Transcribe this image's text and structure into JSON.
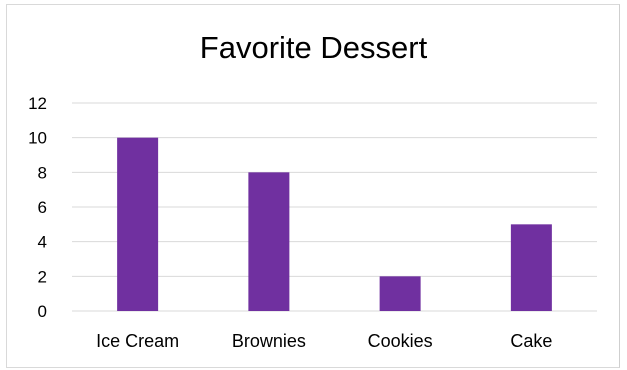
{
  "chart_data": {
    "type": "bar",
    "title": "Favorite Dessert",
    "xlabel": "",
    "ylabel": "",
    "categories": [
      "Ice Cream",
      "Brownies",
      "Cookies",
      "Cake"
    ],
    "values": [
      10,
      8,
      2,
      5
    ],
    "ylim": [
      0,
      12
    ],
    "yticks": [
      0,
      2,
      4,
      6,
      8,
      10,
      12
    ],
    "grid": true,
    "legend": "none",
    "bar_color": "#7030a0",
    "grid_color": "#d9d9d9"
  }
}
